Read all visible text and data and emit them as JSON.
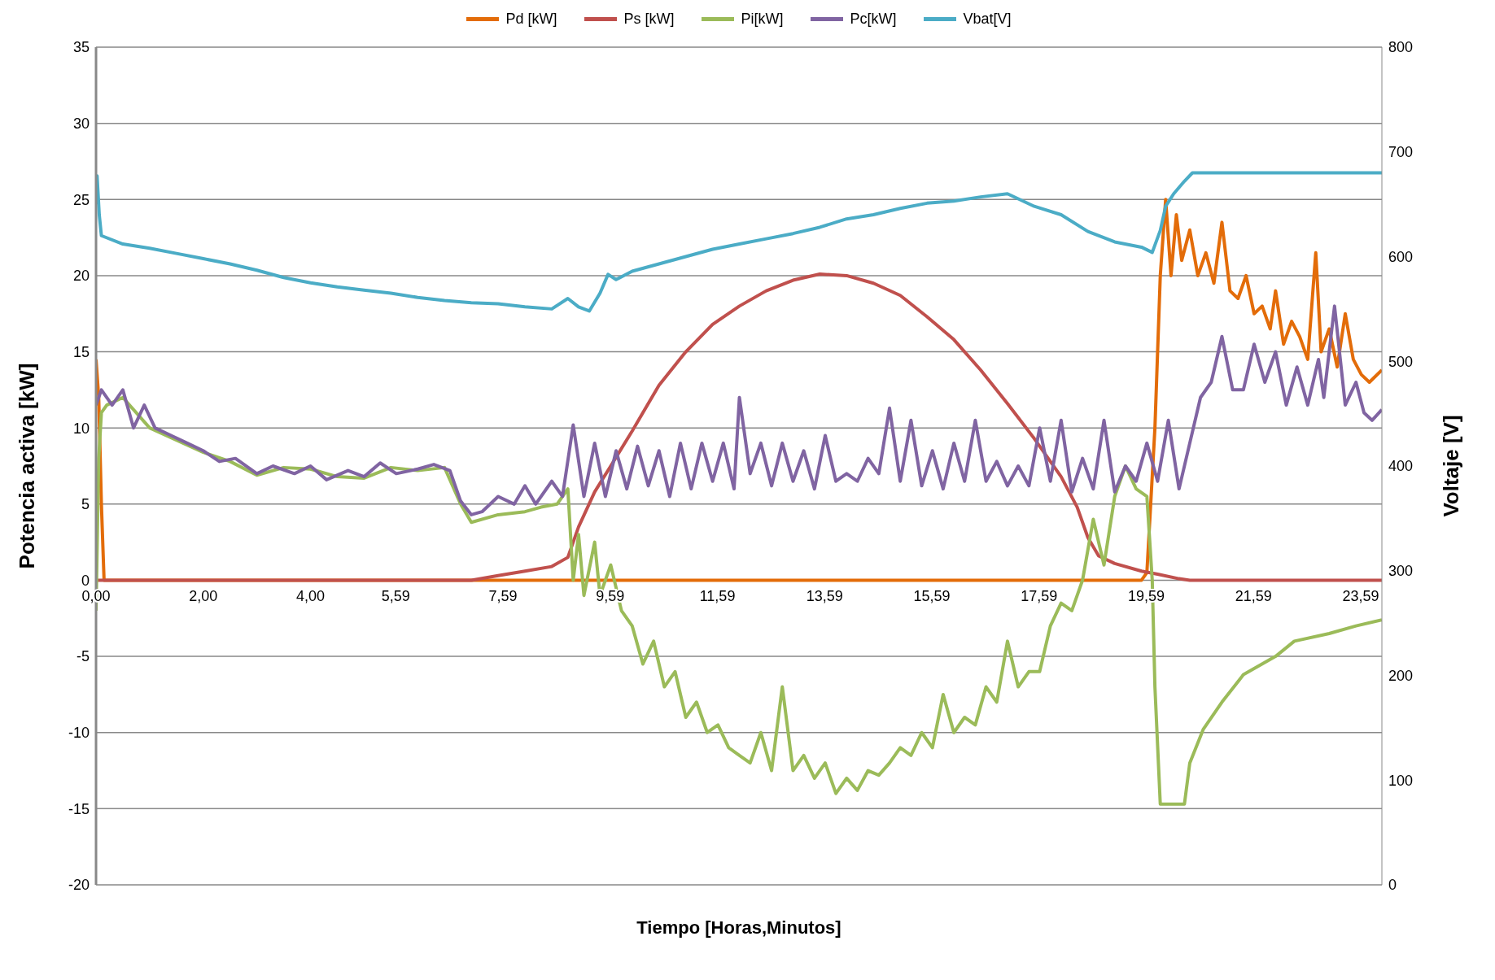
{
  "chart_data": {
    "type": "line",
    "xlabel": "Tiempo [Horas,Minutos]",
    "ylabel": "Potencia activa [kW]",
    "y2label": "Voltaje [V]",
    "xlim": [
      0,
      23.983
    ],
    "xticks": [
      {
        "value": 0,
        "label": "0,00"
      },
      {
        "value": 2,
        "label": "2,00"
      },
      {
        "value": 4,
        "label": "4,00"
      },
      {
        "value": 5.59,
        "label": "5,59"
      },
      {
        "value": 7.59,
        "label": "7,59"
      },
      {
        "value": 9.59,
        "label": "9,59"
      },
      {
        "value": 11.59,
        "label": "11,59"
      },
      {
        "value": 13.59,
        "label": "13,59"
      },
      {
        "value": 15.59,
        "label": "15,59"
      },
      {
        "value": 17.59,
        "label": "17,59"
      },
      {
        "value": 19.59,
        "label": "19,59"
      },
      {
        "value": 21.59,
        "label": "21,59"
      },
      {
        "value": 23.59,
        "label": "23,59"
      }
    ],
    "ylim": [
      -20,
      35
    ],
    "yticks": [
      -20,
      -15,
      -10,
      -5,
      0,
      5,
      10,
      15,
      20,
      25,
      30,
      35
    ],
    "y2lim": [
      0,
      800
    ],
    "y2ticks": [
      0,
      100,
      200,
      300,
      400,
      500,
      600,
      700,
      800
    ],
    "grid": "y",
    "legend": "top",
    "marker": "none",
    "line_style": "solid",
    "series": [
      {
        "name": "Pd [kW]",
        "color": "#e36c09",
        "x": [
          0,
          0.05,
          0.1,
          0.15,
          19.5,
          19.6,
          19.75,
          19.85,
          19.95,
          20.05,
          20.15,
          20.25,
          20.4,
          20.55,
          20.7,
          20.85,
          21.0,
          21.15,
          21.3,
          21.45,
          21.6,
          21.75,
          21.9,
          22.0,
          22.15,
          22.3,
          22.45,
          22.6,
          22.75,
          22.85,
          23.0,
          23.15,
          23.3,
          23.45,
          23.6,
          23.75,
          23.983
        ],
        "values": [
          14.5,
          12,
          5,
          0,
          0,
          0.5,
          10,
          20,
          25,
          20,
          24,
          21,
          23,
          20,
          21.5,
          19.5,
          23.5,
          19,
          18.5,
          20,
          17.5,
          18,
          16.5,
          19,
          15.5,
          17,
          16,
          14.5,
          21.5,
          15,
          16.5,
          14,
          17.5,
          14.5,
          13.5,
          13,
          13.8
        ]
      },
      {
        "name": "Ps [kW]",
        "color": "#c0504d",
        "x": [
          0,
          7.0,
          7.5,
          8.0,
          8.5,
          8.8,
          9.0,
          9.3,
          9.6,
          10,
          10.5,
          11,
          11.5,
          12,
          12.5,
          13,
          13.5,
          14,
          14.5,
          15,
          15.5,
          16,
          16.5,
          17,
          17.5,
          18,
          18.3,
          18.5,
          18.7,
          19,
          19.5,
          19.8,
          20.2,
          20.4,
          23.983
        ],
        "values": [
          0,
          0,
          0.3,
          0.6,
          0.9,
          1.5,
          3.5,
          5.8,
          7.5,
          9.8,
          12.8,
          15,
          16.8,
          18,
          19,
          19.7,
          20.1,
          20,
          19.5,
          18.7,
          17.3,
          15.8,
          13.8,
          11.6,
          9.3,
          6.8,
          4.8,
          2.8,
          1.6,
          1.1,
          0.6,
          0.4,
          0.1,
          0,
          0
        ]
      },
      {
        "name": "Pi[kW]",
        "color": "#9bbb59",
        "x": [
          0,
          0.05,
          0.1,
          0.2,
          0.5,
          1,
          1.5,
          2,
          2.5,
          3,
          3.5,
          4,
          4.5,
          5,
          5.5,
          6,
          6.5,
          6.8,
          7,
          7.5,
          8,
          8.3,
          8.6,
          8.8,
          8.9,
          9.0,
          9.1,
          9.3,
          9.4,
          9.6,
          9.8,
          10,
          10.2,
          10.4,
          10.6,
          10.8,
          11,
          11.2,
          11.4,
          11.6,
          11.8,
          12,
          12.2,
          12.4,
          12.6,
          12.8,
          13,
          13.2,
          13.4,
          13.6,
          13.8,
          14.0,
          14.2,
          14.4,
          14.6,
          14.8,
          15.0,
          15.2,
          15.4,
          15.6,
          15.8,
          16.0,
          16.2,
          16.4,
          16.6,
          16.8,
          17.0,
          17.2,
          17.4,
          17.6,
          17.8,
          18.0,
          18.2,
          18.4,
          18.6,
          18.8,
          19.0,
          19.2,
          19.4,
          19.6,
          19.7,
          19.75,
          19.85,
          20.3,
          20.4,
          20.65,
          21,
          21.4,
          22,
          22.35,
          23,
          23.5,
          23.983
        ],
        "values": [
          -2,
          8,
          11,
          11.5,
          12,
          10,
          9.2,
          8.4,
          7.8,
          6.9,
          7.4,
          7.3,
          6.8,
          6.7,
          7.4,
          7.2,
          7.4,
          5,
          3.8,
          4.3,
          4.5,
          4.8,
          5,
          6,
          0,
          3,
          -1,
          2.5,
          -1,
          1,
          -2,
          -3,
          -5.5,
          -4,
          -7,
          -6,
          -9,
          -8,
          -10,
          -9.5,
          -11,
          -11.5,
          -12,
          -10,
          -12.5,
          -7,
          -12.5,
          -11.5,
          -13,
          -12,
          -14,
          -13,
          -13.8,
          -12.5,
          -12.8,
          -12,
          -11,
          -11.5,
          -10,
          -11,
          -7.5,
          -10,
          -9,
          -9.5,
          -7,
          -8,
          -4,
          -7,
          -6,
          -6,
          -3,
          -1.5,
          -2,
          0,
          4,
          1,
          5.5,
          7.5,
          6,
          5.5,
          0,
          -7,
          -14.7,
          -14.7,
          -12,
          -9.8,
          -8,
          -6.2,
          -5,
          -4,
          -3.5,
          -3,
          -2.6
        ]
      },
      {
        "name": "Pc[kW]",
        "color": "#8064a2",
        "x": [
          0,
          0.1,
          0.3,
          0.5,
          0.7,
          0.9,
          1.1,
          1.4,
          1.7,
          2,
          2.3,
          2.6,
          3,
          3.3,
          3.7,
          4,
          4.3,
          4.7,
          5,
          5.3,
          5.6,
          6,
          6.3,
          6.6,
          6.8,
          7.0,
          7.2,
          7.5,
          7.8,
          8.0,
          8.2,
          8.5,
          8.7,
          8.9,
          9.1,
          9.3,
          9.5,
          9.7,
          9.9,
          10.1,
          10.3,
          10.5,
          10.7,
          10.9,
          11.1,
          11.3,
          11.5,
          11.7,
          11.9,
          12.0,
          12.2,
          12.4,
          12.6,
          12.8,
          13.0,
          13.2,
          13.4,
          13.6,
          13.8,
          14.0,
          14.2,
          14.4,
          14.6,
          14.8,
          15.0,
          15.2,
          15.4,
          15.6,
          15.8,
          16,
          16.2,
          16.4,
          16.6,
          16.8,
          17.0,
          17.2,
          17.4,
          17.6,
          17.8,
          18.0,
          18.2,
          18.4,
          18.6,
          18.8,
          19.0,
          19.2,
          19.4,
          19.6,
          19.8,
          20.0,
          20.2,
          20.4,
          20.6,
          20.8,
          21.0,
          21.2,
          21.4,
          21.6,
          21.8,
          22.0,
          22.2,
          22.4,
          22.6,
          22.8,
          22.9,
          23.1,
          23.3,
          23.5,
          23.65,
          23.8,
          23.983
        ],
        "values": [
          11.5,
          12.5,
          11.5,
          12.5,
          10,
          11.5,
          10,
          9.5,
          9,
          8.5,
          7.8,
          8,
          7,
          7.5,
          7,
          7.5,
          6.6,
          7.2,
          6.8,
          7.7,
          7,
          7.3,
          7.6,
          7.2,
          5.2,
          4.3,
          4.5,
          5.5,
          5,
          6.2,
          5,
          6.5,
          5.5,
          10.2,
          5.5,
          9,
          5.5,
          8.5,
          6,
          8.8,
          6.2,
          8.5,
          5.5,
          9,
          6,
          9,
          6.5,
          9,
          6,
          12,
          7,
          9,
          6.2,
          9,
          6.5,
          8.5,
          6,
          9.5,
          6.5,
          7,
          6.5,
          8,
          7,
          11.3,
          6.5,
          10.5,
          6.2,
          8.5,
          6,
          9,
          6.5,
          10.5,
          6.5,
          7.8,
          6.2,
          7.5,
          6.2,
          10,
          6.5,
          10.5,
          5.8,
          8,
          6,
          10.5,
          5.8,
          7.5,
          6.5,
          9,
          6.5,
          10.5,
          6,
          9,
          12,
          13,
          16,
          12.5,
          12.5,
          15.5,
          13,
          15,
          11.5,
          14,
          11.5,
          14.5,
          12,
          18,
          11.5,
          13,
          11,
          10.5,
          11.2
        ]
      },
      {
        "name": "Vbat[V]",
        "color": "#4bacc6",
        "axis": "y2",
        "x": [
          0,
          0.02,
          0.06,
          0.1,
          0.5,
          1,
          1.5,
          2,
          2.5,
          3,
          3.5,
          4,
          4.5,
          5,
          5.5,
          6,
          6.5,
          7,
          7.5,
          8,
          8.5,
          8.8,
          9.0,
          9.2,
          9.4,
          9.55,
          9.7,
          10,
          10.5,
          11,
          11.5,
          12,
          12.5,
          13,
          13.5,
          14,
          14.5,
          15,
          15.5,
          16,
          16.5,
          17,
          17.5,
          18,
          18.5,
          19,
          19.5,
          19.7,
          19.85,
          19.95,
          20.1,
          20.3,
          20.45,
          23.983
        ],
        "values": [
          650,
          677,
          640,
          620,
          612,
          608,
          603,
          598,
          593,
          587,
          580,
          575,
          571,
          568,
          565,
          561,
          558,
          556,
          555,
          552,
          550,
          560,
          552,
          548,
          565,
          583,
          578,
          586,
          593,
          600,
          607,
          612,
          617,
          622,
          628,
          636,
          640,
          646,
          651,
          653,
          657,
          660,
          648,
          640,
          624,
          614,
          609,
          604,
          625,
          648,
          660,
          672,
          680,
          680
        ]
      }
    ]
  }
}
